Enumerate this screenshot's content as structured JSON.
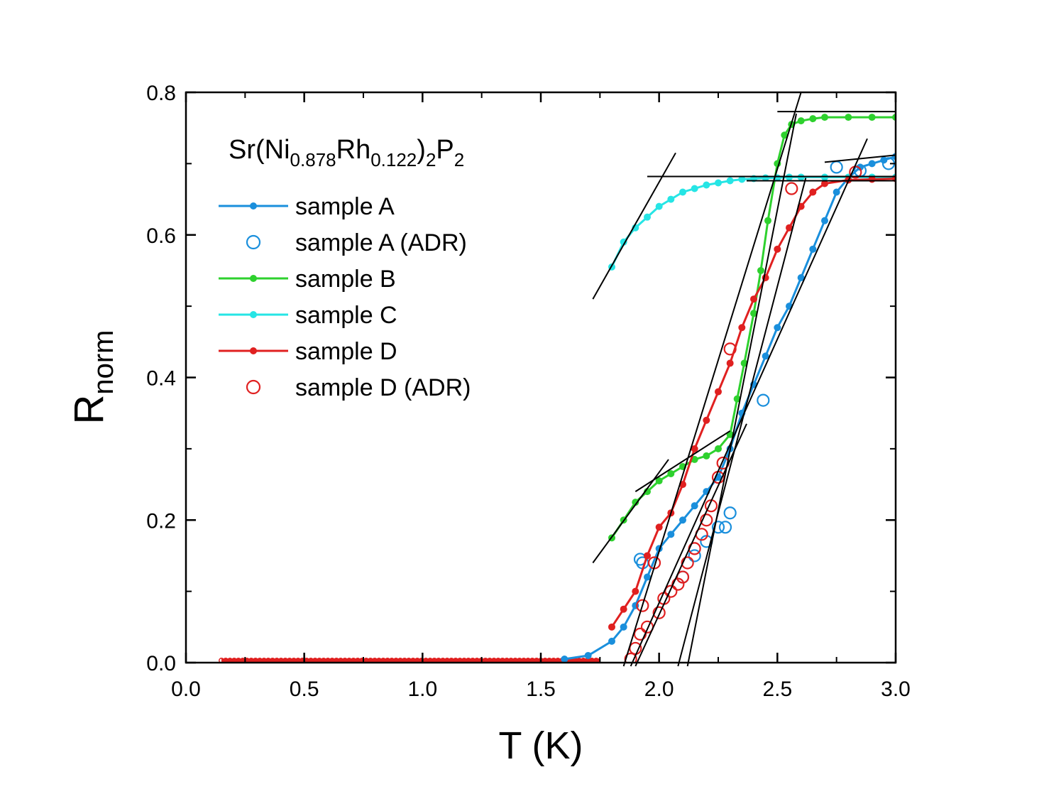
{
  "chart_data": {
    "type": "line",
    "title": "",
    "annotation": {
      "base": "Sr(Ni",
      "sub1": "0.878",
      "mid1": "Rh",
      "sub2": "0.122",
      "mid2": ")",
      "sub3": "2",
      "mid3": "P",
      "sub4": "2"
    },
    "xlabel": "T (K)",
    "ylabel": {
      "main": "R",
      "sub": "norm"
    },
    "xlim": [
      0.0,
      3.0
    ],
    "ylim": [
      0.0,
      0.8
    ],
    "xticks": [
      0.0,
      0.5,
      1.0,
      1.5,
      2.0,
      2.5,
      3.0
    ],
    "xtick_labels": [
      "0.0",
      "0.5",
      "1.0",
      "1.5",
      "2.0",
      "2.5",
      "3.0"
    ],
    "yticks": [
      0.0,
      0.2,
      0.4,
      0.6,
      0.8
    ],
    "ytick_labels": [
      "0.0",
      "0.2",
      "0.4",
      "0.6",
      "0.8"
    ],
    "legend_position": "top-left",
    "series": [
      {
        "name": "sample A",
        "style": "line-dot",
        "color": "#1a8fdc",
        "x": [
          1.6,
          1.7,
          1.8,
          1.85,
          1.9,
          1.95,
          2.0,
          2.05,
          2.1,
          2.15,
          2.2,
          2.25,
          2.3,
          2.35,
          2.4,
          2.45,
          2.5,
          2.55,
          2.6,
          2.65,
          2.7,
          2.75,
          2.8,
          2.85,
          2.9,
          2.95,
          3.0
        ],
        "y": [
          0.005,
          0.01,
          0.03,
          0.05,
          0.08,
          0.12,
          0.16,
          0.18,
          0.2,
          0.22,
          0.24,
          0.26,
          0.3,
          0.35,
          0.39,
          0.43,
          0.47,
          0.5,
          0.54,
          0.58,
          0.62,
          0.66,
          0.68,
          0.695,
          0.7,
          0.705,
          0.71
        ]
      },
      {
        "name": "sample A (ADR)",
        "style": "open-circle",
        "color": "#1a8fdc",
        "x": [
          1.92,
          1.93,
          2.1,
          2.15,
          2.2,
          2.25,
          2.28,
          2.3,
          2.44,
          2.75,
          2.85,
          2.97
        ],
        "y": [
          0.145,
          0.14,
          0.12,
          0.15,
          0.17,
          0.19,
          0.19,
          0.21,
          0.368,
          0.695,
          0.69,
          0.7
        ]
      },
      {
        "name": "sample B",
        "style": "line-dot",
        "color": "#2ed12e",
        "x": [
          1.8,
          1.85,
          1.9,
          1.95,
          2.0,
          2.05,
          2.1,
          2.15,
          2.2,
          2.25,
          2.3,
          2.33,
          2.36,
          2.4,
          2.43,
          2.46,
          2.5,
          2.53,
          2.56,
          2.6,
          2.65,
          2.7,
          2.8,
          2.9,
          3.0
        ],
        "y": [
          0.175,
          0.2,
          0.225,
          0.24,
          0.255,
          0.265,
          0.275,
          0.285,
          0.29,
          0.3,
          0.32,
          0.37,
          0.42,
          0.49,
          0.55,
          0.62,
          0.7,
          0.74,
          0.755,
          0.76,
          0.763,
          0.765,
          0.765,
          0.765,
          0.765
        ]
      },
      {
        "name": "sample C",
        "style": "line-dot",
        "color": "#26e5e5",
        "x": [
          1.8,
          1.85,
          1.9,
          1.95,
          2.0,
          2.05,
          2.1,
          2.15,
          2.2,
          2.25,
          2.3,
          2.35,
          2.4,
          2.45,
          2.5,
          2.55,
          2.6,
          2.7,
          2.8,
          2.9,
          3.0
        ],
        "y": [
          0.555,
          0.59,
          0.61,
          0.625,
          0.64,
          0.65,
          0.66,
          0.665,
          0.67,
          0.673,
          0.676,
          0.678,
          0.679,
          0.68,
          0.68,
          0.681,
          0.681,
          0.681,
          0.681,
          0.681,
          0.681
        ]
      },
      {
        "name": "sample D",
        "style": "line-dot",
        "color": "#e02020",
        "x": [
          1.8,
          1.85,
          1.9,
          1.95,
          2.0,
          2.05,
          2.1,
          2.15,
          2.2,
          2.25,
          2.3,
          2.35,
          2.4,
          2.45,
          2.5,
          2.55,
          2.6,
          2.65,
          2.7,
          2.8,
          2.9,
          3.0
        ],
        "y": [
          0.05,
          0.075,
          0.1,
          0.15,
          0.19,
          0.21,
          0.25,
          0.3,
          0.34,
          0.38,
          0.42,
          0.47,
          0.51,
          0.54,
          0.58,
          0.61,
          0.64,
          0.66,
          0.672,
          0.677,
          0.678,
          0.679
        ]
      },
      {
        "name": "sample D (ADR)",
        "style": "open-circle",
        "color": "#e02020",
        "x": [
          1.88,
          1.9,
          1.92,
          1.93,
          1.95,
          1.98,
          2.0,
          2.02,
          2.05,
          2.08,
          2.1,
          2.12,
          2.15,
          2.18,
          2.2,
          2.22,
          2.25,
          2.27,
          2.3,
          2.56,
          2.83
        ],
        "y": [
          0.005,
          0.02,
          0.04,
          0.08,
          0.05,
          0.14,
          0.07,
          0.09,
          0.1,
          0.11,
          0.12,
          0.14,
          0.16,
          0.18,
          0.2,
          0.22,
          0.26,
          0.28,
          0.44,
          0.665,
          0.688
        ]
      }
    ],
    "low_temp_baseline": {
      "x": [
        0.15,
        1.75
      ],
      "y": [
        0.003,
        0.003
      ]
    },
    "fit_lines": [
      {
        "x": [
          1.72,
          2.07
        ],
        "y": [
          0.51,
          0.715
        ]
      },
      {
        "x": [
          1.95,
          3.0
        ],
        "y": [
          0.682,
          0.682
        ]
      },
      {
        "x": [
          2.5,
          3.0
        ],
        "y": [
          0.773,
          0.773
        ]
      },
      {
        "x": [
          2.7,
          3.0
        ],
        "y": [
          0.702,
          0.712
        ]
      },
      {
        "x": [
          2.37,
          3.0
        ],
        "y": [
          0.676,
          0.676
        ]
      },
      {
        "x": [
          1.72,
          2.04
        ],
        "y": [
          0.14,
          0.285
        ]
      },
      {
        "x": [
          1.9,
          2.3
        ],
        "y": [
          0.24,
          0.325
        ]
      },
      {
        "x": [
          1.85,
          2.6
        ],
        "y": [
          -0.005,
          0.8
        ]
      },
      {
        "x": [
          2.08,
          2.62
        ],
        "y": [
          -0.005,
          0.68
        ]
      },
      {
        "x": [
          2.12,
          2.58
        ],
        "y": [
          -0.005,
          0.77
        ]
      },
      {
        "x": [
          1.88,
          2.88
        ],
        "y": [
          -0.005,
          0.735
        ]
      },
      {
        "x": [
          1.9,
          2.37
        ],
        "y": [
          -0.005,
          0.335
        ]
      }
    ]
  }
}
